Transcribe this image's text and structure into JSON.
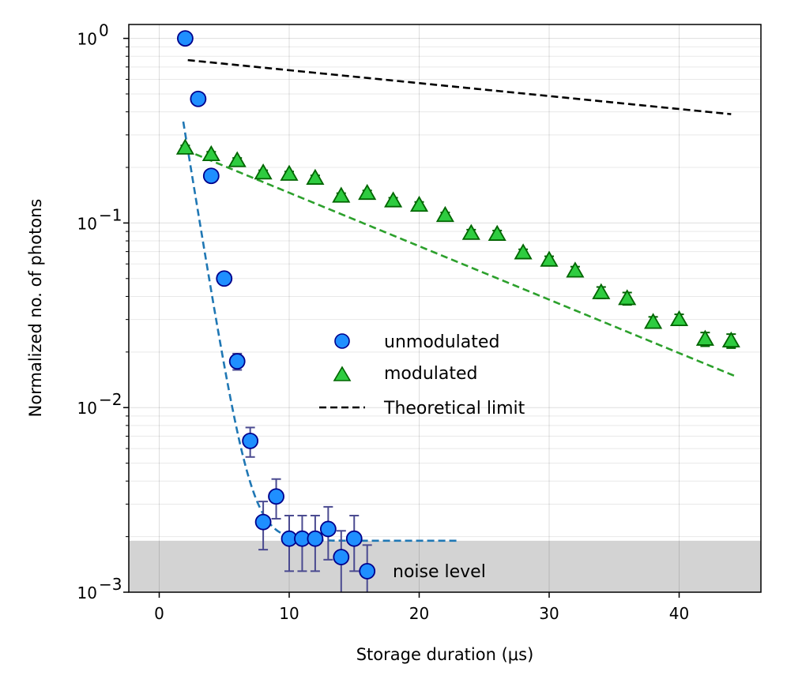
{
  "chart_data": {
    "type": "scatter",
    "xlabel": "Storage duration (μs)",
    "ylabel": "Normalized no. of photons",
    "yscale": "log",
    "xlim": [
      -2.5,
      46.5
    ],
    "ylim": [
      0.001,
      1.2
    ],
    "x_ticks": [
      0,
      10,
      20,
      30,
      40
    ],
    "y_ticks": [
      {
        "value": 1,
        "base": "10",
        "exp": "0"
      },
      {
        "value": 0.1,
        "base": "10",
        "exp": "−1"
      },
      {
        "value": 0.01,
        "base": "10",
        "exp": "−2"
      },
      {
        "value": 0.001,
        "base": "10",
        "exp": "−3"
      }
    ],
    "grid": true,
    "legend_position": "center",
    "colors": {
      "unmodulated_fill": "#1f8fff",
      "unmodulated_edge": "#00008b",
      "unmodulated_err": "#4a4a90",
      "modulated_fill": "#2ecc40",
      "modulated_edge": "#006400",
      "unmodulated_fit": "#1f77b4",
      "modulated_fit": "#2ca02c",
      "theory": "#000000",
      "noise_band": "#d3d3d3"
    },
    "series": [
      {
        "name": "unmodulated",
        "marker": "circle",
        "x": [
          2,
          3,
          4,
          5,
          6,
          7,
          8,
          9,
          10,
          11,
          12,
          13,
          14,
          15,
          16
        ],
        "y": [
          1.0,
          0.47,
          0.18,
          0.05,
          0.0178,
          0.0066,
          0.0024,
          0.0033,
          0.00195,
          0.00195,
          0.00195,
          0.0022,
          0.00155,
          0.00195,
          0.0013
        ],
        "yerr": [
          0,
          0,
          0,
          0,
          0.0018,
          0.0012,
          0.0007,
          0.0008,
          0.00065,
          0.00065,
          0.00065,
          0.0007,
          0.0006,
          0.00065,
          0.0005
        ]
      },
      {
        "name": "modulated",
        "marker": "triangle",
        "x": [
          2,
          4,
          6,
          8,
          10,
          12,
          14,
          16,
          18,
          20,
          22,
          24,
          26,
          28,
          30,
          32,
          34,
          36,
          38,
          40,
          42,
          44
        ],
        "y": [
          0.255,
          0.235,
          0.218,
          0.187,
          0.184,
          0.175,
          0.14,
          0.145,
          0.132,
          0.125,
          0.11,
          0.088,
          0.087,
          0.069,
          0.063,
          0.055,
          0.042,
          0.039,
          0.029,
          0.03,
          0.0235,
          0.023
        ],
        "yerr": [
          0.008,
          0.008,
          0.007,
          0.006,
          0.006,
          0.006,
          0.005,
          0.005,
          0.005,
          0.005,
          0.004,
          0.004,
          0.004,
          0.003,
          0.003,
          0.003,
          0.003,
          0.003,
          0.002,
          0.002,
          0.002,
          0.002
        ]
      }
    ],
    "fits": [
      {
        "name": "unmodulated fit",
        "model": "exp_decay_plus_floor",
        "amplitude": 2.24,
        "tau": 1.0,
        "floor": 0.0019,
        "x_range": [
          1.85,
          23
        ]
      },
      {
        "name": "modulated fit",
        "model": "exp_decay",
        "amplitude": 0.284,
        "tau": 15.0,
        "x_range": [
          2,
          44.3
        ]
      },
      {
        "name": "Theoretical limit",
        "model": "exp_decay",
        "amplitude": 0.79,
        "tau": 62.0,
        "x_range": [
          2.2,
          44
        ]
      }
    ],
    "noise_band": {
      "y_min": 0.001,
      "y_max": 0.0019,
      "label": "noise level"
    },
    "legend": [
      {
        "label": "unmodulated",
        "marker": "circle"
      },
      {
        "label": "modulated",
        "marker": "triangle"
      },
      {
        "label": "Theoretical limit",
        "marker": "dashed-line"
      }
    ]
  }
}
